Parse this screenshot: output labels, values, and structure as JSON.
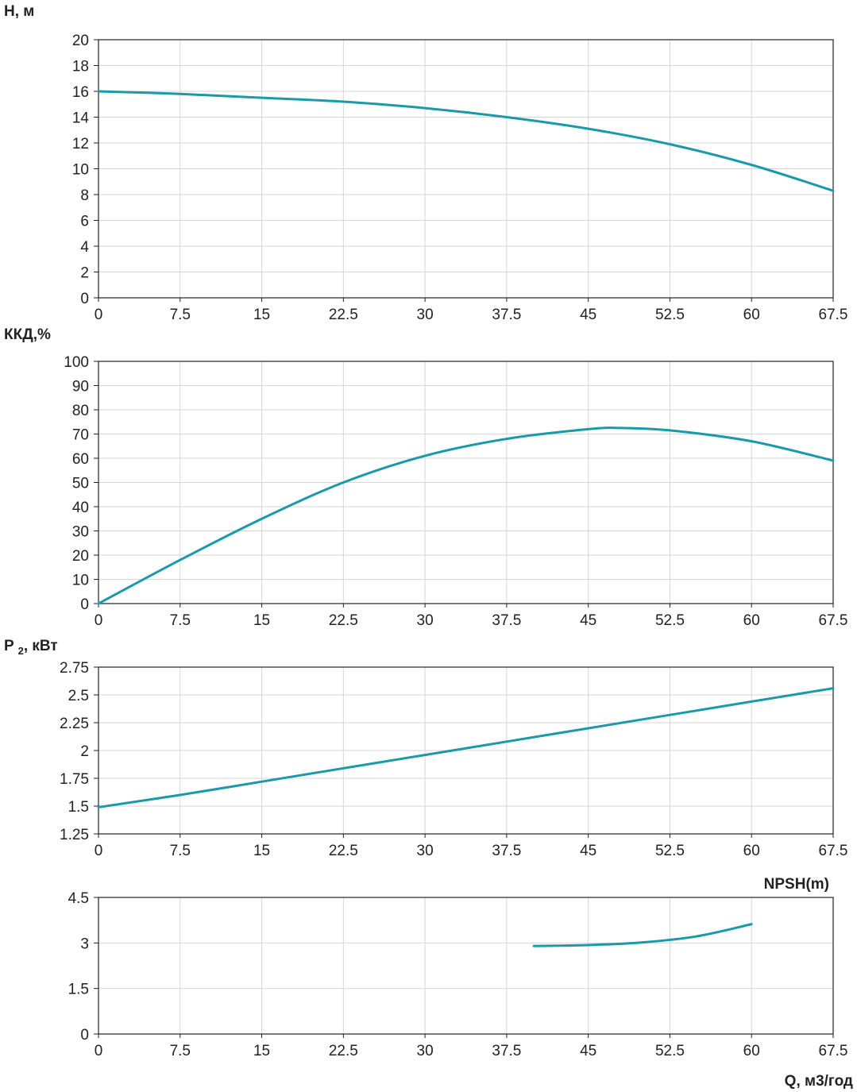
{
  "colors": {
    "curve": "#1a9aa8",
    "grid": "#d6d6d6",
    "axis": "#222222"
  },
  "x_axis_label": "Q, м3/год",
  "chart_data": [
    {
      "type": "line",
      "ylabel": "H, м",
      "ylabel_parts": [
        "H, м"
      ],
      "xlim": [
        0,
        67.5
      ],
      "ylim": [
        0,
        20
      ],
      "xticks": [
        "0",
        "7.5",
        "15",
        "22.5",
        "30",
        "37.5",
        "45",
        "52.5",
        "60",
        "67.5"
      ],
      "yticks": [
        "0",
        "2",
        "4",
        "6",
        "8",
        "10",
        "12",
        "14",
        "16",
        "18",
        "20"
      ],
      "grid": true,
      "series": [
        {
          "x": [
            0,
            7.5,
            15,
            22.5,
            30,
            37.5,
            45,
            52.5,
            60,
            67.5
          ],
          "y": [
            16.0,
            15.8,
            15.5,
            15.2,
            14.7,
            14.0,
            13.1,
            11.9,
            10.3,
            8.3
          ]
        }
      ]
    },
    {
      "type": "line",
      "ylabel": "ККД,%",
      "ylabel_parts": [
        "ККД,%"
      ],
      "xlim": [
        0,
        67.5
      ],
      "ylim": [
        0,
        100
      ],
      "xticks": [
        "0",
        "7.5",
        "15",
        "22.5",
        "30",
        "37.5",
        "45",
        "52.5",
        "60",
        "67.5"
      ],
      "yticks": [
        "0",
        "10",
        "20",
        "30",
        "40",
        "50",
        "60",
        "70",
        "80",
        "90",
        "100"
      ],
      "grid": true,
      "series": [
        {
          "x": [
            0,
            7.5,
            15,
            22.5,
            30,
            37.5,
            45,
            48,
            52.5,
            60,
            67.5
          ],
          "y": [
            0,
            18,
            35,
            50,
            61,
            68,
            72,
            72.5,
            71.5,
            67,
            59
          ]
        }
      ]
    },
    {
      "type": "line",
      "ylabel": "P 2, кВт",
      "ylabel_parts": [
        "P ",
        "2",
        ", кВт"
      ],
      "xlim": [
        0,
        67.5
      ],
      "ylim": [
        1.25,
        2.75
      ],
      "xticks": [
        "0",
        "7.5",
        "15",
        "22.5",
        "30",
        "37.5",
        "45",
        "52.5",
        "60",
        "67.5"
      ],
      "yticks": [
        "1.25",
        "1.5",
        "1.75",
        "2",
        "2.25",
        "2.5",
        "2.75"
      ],
      "grid": true,
      "series": [
        {
          "x": [
            0,
            7.5,
            15,
            22.5,
            30,
            37.5,
            45,
            52.5,
            60,
            67.5
          ],
          "y": [
            1.49,
            1.6,
            1.72,
            1.84,
            1.96,
            2.08,
            2.2,
            2.32,
            2.44,
            2.56
          ]
        }
      ]
    },
    {
      "type": "line",
      "ylabel": "NPSH(m)",
      "ylabel_parts": [
        "NPSH(m)"
      ],
      "xlabel": "Q, м3/год",
      "xlim": [
        0,
        67.5
      ],
      "ylim": [
        0,
        4.5
      ],
      "xticks": [
        "0",
        "7.5",
        "15",
        "22.5",
        "30",
        "37.5",
        "45",
        "52.5",
        "60",
        "67.5"
      ],
      "yticks": [
        "0",
        "1.5",
        "3",
        "4.5"
      ],
      "grid": true,
      "series": [
        {
          "x": [
            40,
            45,
            50,
            55,
            60
          ],
          "y": [
            2.9,
            2.93,
            3.02,
            3.22,
            3.62
          ]
        }
      ]
    }
  ]
}
